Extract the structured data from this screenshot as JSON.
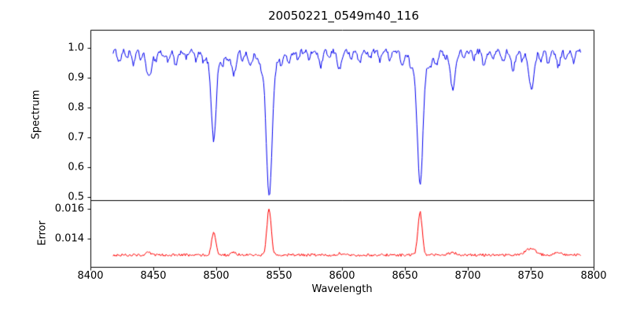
{
  "chart_data": {
    "type": "line",
    "title": "20050221_0549m40_116",
    "xlabel": "Wavelength",
    "grid": false,
    "legend": "none",
    "xlim": [
      8400,
      8800
    ],
    "x_tick_values": [
      8400,
      8450,
      8500,
      8550,
      8600,
      8650,
      8700,
      8750,
      8800
    ],
    "x_tick_labels": [
      "8400",
      "8450",
      "8500",
      "8550",
      "8600",
      "8650",
      "8700",
      "8750",
      "8800"
    ],
    "panels": [
      {
        "ylabel": "Spectrum",
        "ylim": [
          0.49,
          1.06
        ],
        "y_tick_values": [
          0.5,
          0.6,
          0.7,
          0.8,
          0.9,
          1.0
        ],
        "y_tick_labels": [
          "0.5",
          "0.6",
          "0.7",
          "0.8",
          "0.9",
          "1.0"
        ],
        "line_color": "#0000ee",
        "series": {
          "name": "spectrum",
          "x_start": 8418,
          "x_end": 8790,
          "x_step": 0.7,
          "continuum": 0.988,
          "noise_amplitude": 0.009,
          "absorption_lines": [
            [
              8423,
              0.035,
              1.2
            ],
            [
              8429,
              0.02,
              1.0
            ],
            [
              8434,
              0.045,
              1.2
            ],
            [
              8440,
              0.025,
              1.0
            ],
            [
              8446.5,
              0.09,
              2.0
            ],
            [
              8452,
              0.03,
              1.0
            ],
            [
              8458,
              0.02,
              1.0
            ],
            [
              8462,
              0.035,
              1.2
            ],
            [
              8468,
              0.05,
              1.4
            ],
            [
              8476,
              0.025,
              1.0
            ],
            [
              8484,
              0.03,
              1.0
            ],
            [
              8490,
              0.02,
              1.0
            ],
            [
              8498,
              0.26,
              1.8
            ],
            [
              8498,
              0.04,
              6
            ],
            [
              8505,
              0.03,
              1.0
            ],
            [
              8509,
              0.025,
              1.0
            ],
            [
              8514,
              0.075,
              1.8
            ],
            [
              8521,
              0.03,
              1.0
            ],
            [
              8527,
              0.045,
              1.4
            ],
            [
              8536,
              0.03,
              1.0
            ],
            [
              8542.1,
              0.44,
              2.2
            ],
            [
              8542.1,
              0.05,
              7
            ],
            [
              8552,
              0.03,
              1.0
            ],
            [
              8558,
              0.04,
              1.2
            ],
            [
              8565,
              0.025,
              1.0
            ],
            [
              8574,
              0.03,
              1.0
            ],
            [
              8583,
              0.05,
              1.5
            ],
            [
              8590,
              0.025,
              1.0
            ],
            [
              8598,
              0.06,
              1.6
            ],
            [
              8607,
              0.03,
              1.0
            ],
            [
              8614,
              0.04,
              1.2
            ],
            [
              8622,
              0.025,
              1.0
            ],
            [
              8630,
              0.03,
              1.0
            ],
            [
              8638,
              0.025,
              1.0
            ],
            [
              8648,
              0.04,
              1.3
            ],
            [
              8655,
              0.03,
              1.0
            ],
            [
              8662.1,
              0.39,
              2.2
            ],
            [
              8662.1,
              0.05,
              7
            ],
            [
              8670,
              0.03,
              1.0
            ],
            [
              8675,
              0.035,
              1.2
            ],
            [
              8682,
              0.025,
              1.0
            ],
            [
              8688,
              0.125,
              2.0
            ],
            [
              8697,
              0.03,
              1.0
            ],
            [
              8705,
              0.025,
              1.0
            ],
            [
              8713,
              0.05,
              1.4
            ],
            [
              8720,
              0.03,
              1.0
            ],
            [
              8728,
              0.035,
              1.2
            ],
            [
              8736,
              0.06,
              1.5
            ],
            [
              8743,
              0.03,
              1.0
            ],
            [
              8750.5,
              0.125,
              2.2
            ],
            [
              8758,
              0.03,
              1.0
            ],
            [
              8764,
              0.04,
              1.2
            ],
            [
              8772,
              0.05,
              1.4
            ],
            [
              8778,
              0.03,
              1.0
            ],
            [
              8784,
              0.035,
              1.2
            ]
          ],
          "key_features": [
            {
              "center": 8498,
              "min_flux": 0.69
            },
            {
              "center": 8542,
              "min_flux": 0.5
            },
            {
              "center": 8662,
              "min_flux": 0.55
            },
            {
              "center": 8688,
              "min_flux": 0.87
            },
            {
              "center": 8750,
              "min_flux": 0.87
            }
          ]
        }
      },
      {
        "ylabel": "Error",
        "ylim": [
          0.0121,
          0.0166
        ],
        "y_tick_values": [
          0.014,
          0.016
        ],
        "y_tick_labels": [
          "0.014",
          "0.016"
        ],
        "line_color": "#ff0000",
        "series": {
          "name": "error",
          "x_start": 8418,
          "x_end": 8790,
          "x_step": 0.7,
          "baseline": 0.0129,
          "noise_amplitude": 9e-05,
          "emission_peaks": [
            [
              8446,
              0.00015,
              2.0
            ],
            [
              8498,
              0.0016,
              1.6
            ],
            [
              8514,
              0.00015,
              2.0
            ],
            [
              8542,
              0.0031,
              1.7
            ],
            [
              8598,
              0.0001,
              2.0
            ],
            [
              8662,
              0.0029,
              1.7
            ],
            [
              8688,
              0.00015,
              3.0
            ],
            [
              8750,
              0.00045,
              4.0
            ],
            [
              8772,
              0.0002,
              3.0
            ]
          ],
          "key_features": [
            {
              "center": 8498,
              "peak_value": 0.0145
            },
            {
              "center": 8542,
              "peak_value": 0.016
            },
            {
              "center": 8662,
              "peak_value": 0.0158
            }
          ]
        }
      }
    ]
  }
}
